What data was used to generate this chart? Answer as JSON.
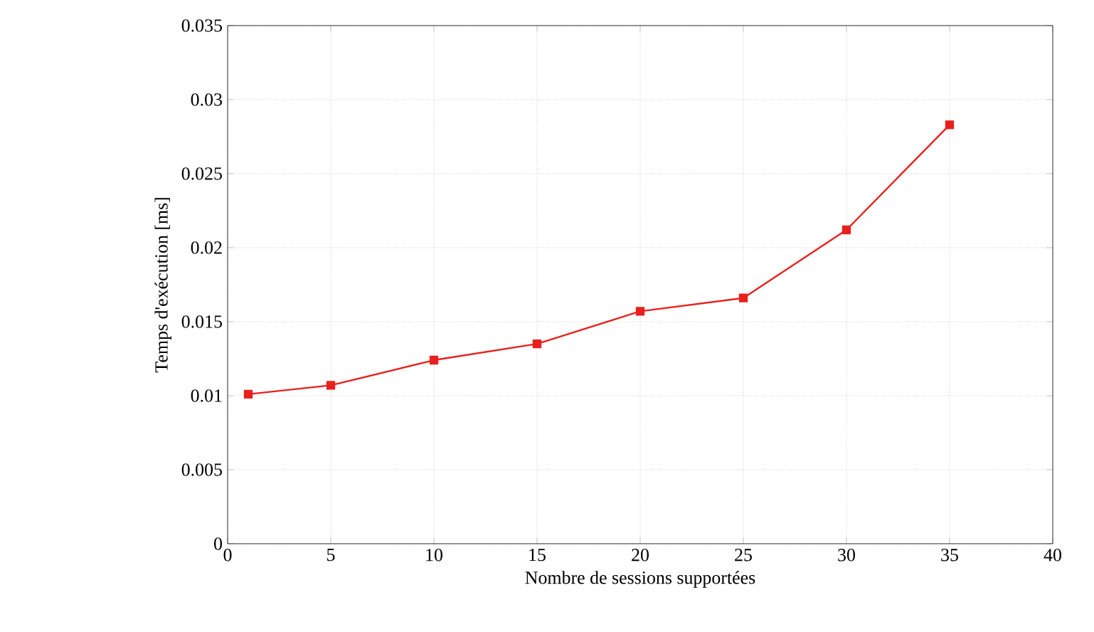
{
  "chart_data": {
    "type": "line",
    "xlabel": "Nombre de sessions supportées",
    "ylabel": "Temps d'exécution [ms]",
    "x": [
      1,
      5,
      10,
      15,
      20,
      25,
      30,
      35
    ],
    "series": [
      {
        "color": "#e8201e",
        "values": [
          0.0101,
          0.0107,
          0.0124,
          0.0135,
          0.0157,
          0.0166,
          0.0212,
          0.0283
        ]
      }
    ],
    "xlim": [
      0,
      40
    ],
    "xticks": [
      0,
      5,
      10,
      15,
      20,
      25,
      30,
      35,
      40
    ],
    "ylim": [
      0,
      0.035
    ],
    "yticks": [
      0,
      0.005,
      0.01,
      0.015,
      0.02,
      0.025,
      0.03,
      0.035
    ],
    "grid": true,
    "marker": "square",
    "line_style": "solid"
  }
}
